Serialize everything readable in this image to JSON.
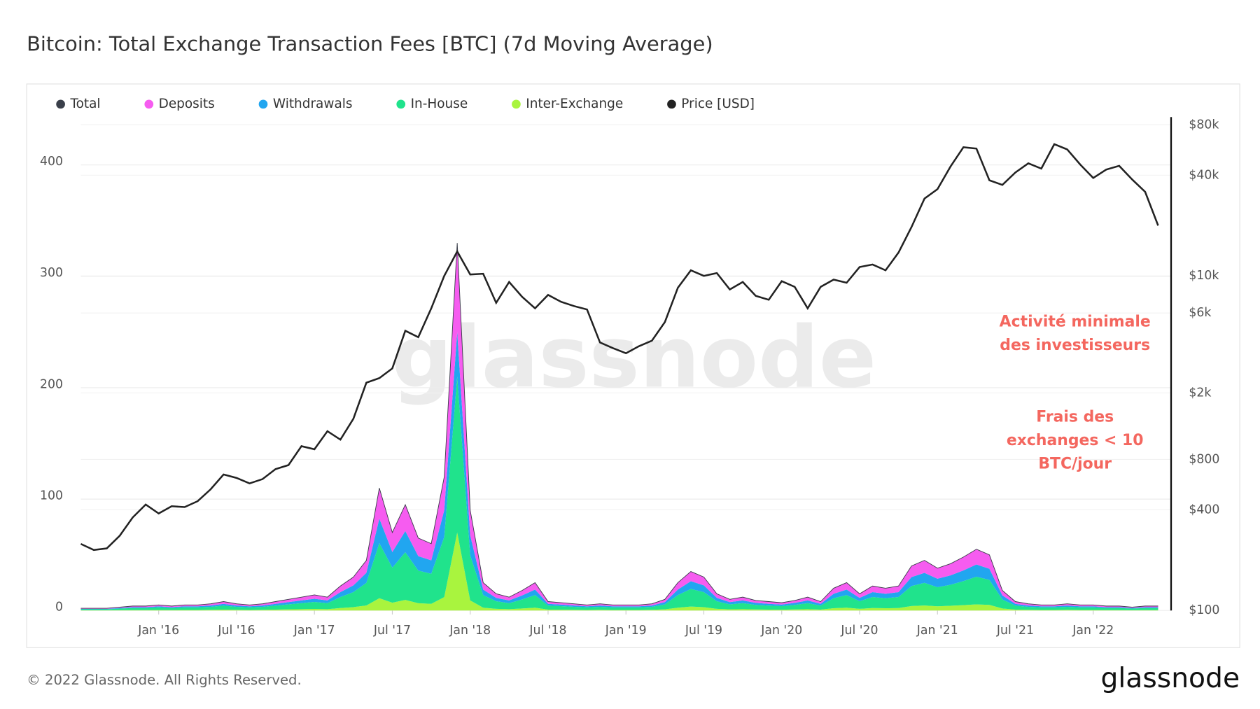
{
  "chart_data": {
    "type": "stacked-area",
    "title": "Bitcoin: Total Exchange Transaction Fees [BTC] (7d Moving Average)",
    "x": [
      "2015-07",
      "2015-08",
      "2015-09",
      "2015-10",
      "2015-11",
      "2015-12",
      "2016-01",
      "2016-02",
      "2016-03",
      "2016-04",
      "2016-05",
      "2016-06",
      "2016-07",
      "2016-08",
      "2016-09",
      "2016-10",
      "2016-11",
      "2016-12",
      "2017-01",
      "2017-02",
      "2017-03",
      "2017-04",
      "2017-05",
      "2017-06",
      "2017-07",
      "2017-08",
      "2017-09",
      "2017-10",
      "2017-11",
      "2017-12",
      "2018-01",
      "2018-02",
      "2018-03",
      "2018-04",
      "2018-05",
      "2018-06",
      "2018-07",
      "2018-08",
      "2018-09",
      "2018-10",
      "2018-11",
      "2018-12",
      "2019-01",
      "2019-02",
      "2019-03",
      "2019-04",
      "2019-05",
      "2019-06",
      "2019-07",
      "2019-08",
      "2019-09",
      "2019-10",
      "2019-11",
      "2019-12",
      "2020-01",
      "2020-02",
      "2020-03",
      "2020-04",
      "2020-05",
      "2020-06",
      "2020-07",
      "2020-08",
      "2020-09",
      "2020-10",
      "2020-11",
      "2020-12",
      "2021-01",
      "2021-02",
      "2021-03",
      "2021-04",
      "2021-05",
      "2021-06",
      "2021-07",
      "2021-08",
      "2021-09",
      "2021-10",
      "2021-11",
      "2021-12",
      "2022-01",
      "2022-02",
      "2022-03",
      "2022-04",
      "2022-05",
      "2022-06"
    ],
    "xlim": [
      "2015-07",
      "2022-07"
    ],
    "xticks": [
      {
        "value": "2016-01",
        "label": "Jan '16"
      },
      {
        "value": "2016-07",
        "label": "Jul '16"
      },
      {
        "value": "2017-01",
        "label": "Jan '17"
      },
      {
        "value": "2017-07",
        "label": "Jul '17"
      },
      {
        "value": "2018-01",
        "label": "Jan '18"
      },
      {
        "value": "2018-07",
        "label": "Jul '18"
      },
      {
        "value": "2019-01",
        "label": "Jan '19"
      },
      {
        "value": "2019-07",
        "label": "Jul '19"
      },
      {
        "value": "2020-01",
        "label": "Jan '20"
      },
      {
        "value": "2020-07",
        "label": "Jul '20"
      },
      {
        "value": "2021-01",
        "label": "Jan '21"
      },
      {
        "value": "2021-07",
        "label": "Jul '21"
      },
      {
        "value": "2022-01",
        "label": "Jan '22"
      }
    ],
    "ylim": [
      0,
      443
    ],
    "yticks": [
      0,
      100,
      200,
      300,
      400
    ],
    "y2lim": [
      100,
      89000
    ],
    "y2scale": "log",
    "y2ticks": [
      {
        "value": 100,
        "label": "$100"
      },
      {
        "value": 400,
        "label": "$400"
      },
      {
        "value": 800,
        "label": "$800"
      },
      {
        "value": 2000,
        "label": "$2k"
      },
      {
        "value": 6000,
        "label": "$6k"
      },
      {
        "value": 10000,
        "label": "$10k"
      },
      {
        "value": 40000,
        "label": "$40k"
      },
      {
        "value": 80000,
        "label": "$80k"
      }
    ],
    "grid": true,
    "series": [
      {
        "name": "Total",
        "color": "#3a3f4a",
        "kind": "line",
        "values": [
          2,
          2,
          2,
          3,
          4,
          4,
          5,
          4,
          5,
          5,
          6,
          8,
          6,
          5,
          6,
          8,
          10,
          12,
          14,
          12,
          22,
          30,
          45,
          110,
          70,
          95,
          65,
          60,
          120,
          330,
          90,
          25,
          15,
          12,
          18,
          25,
          8,
          7,
          6,
          5,
          6,
          5,
          5,
          5,
          6,
          10,
          25,
          35,
          30,
          15,
          10,
          12,
          9,
          8,
          7,
          9,
          12,
          8,
          20,
          25,
          15,
          22,
          20,
          22,
          40,
          45,
          38,
          42,
          48,
          55,
          50,
          18,
          8,
          6,
          5,
          5,
          6,
          5,
          5,
          4,
          4,
          3,
          4,
          4
        ]
      },
      {
        "name": "Deposits",
        "color": "#f65cf0",
        "kind": "stack",
        "values": [
          0.5,
          0.5,
          0.5,
          0.7,
          1,
          1,
          1.2,
          1,
          1.2,
          1.2,
          1.5,
          2,
          1.5,
          1.2,
          1.5,
          2,
          2.5,
          3,
          3.5,
          3,
          5.5,
          7.5,
          11.2,
          27.5,
          17.5,
          23.7,
          16.2,
          15,
          30,
          80,
          22.5,
          6.2,
          3.7,
          3,
          4.5,
          6.2,
          2,
          1.7,
          1.5,
          1.2,
          1.5,
          1.2,
          1.2,
          1.2,
          1.5,
          2.5,
          6.2,
          8.7,
          7.5,
          3.7,
          2.5,
          3,
          2.2,
          2,
          1.7,
          2.2,
          3,
          2,
          5,
          6.2,
          3.7,
          5.5,
          5,
          5.5,
          10,
          11.2,
          9.5,
          10.5,
          12,
          13.7,
          12.5,
          4.5,
          2,
          1.5,
          1.2,
          1.2,
          1.5,
          1.2,
          1.2,
          1,
          1,
          0.7,
          1,
          1
        ]
      },
      {
        "name": "Withdrawals",
        "color": "#21a6f0",
        "kind": "stack",
        "values": [
          0.4,
          0.4,
          0.4,
          0.6,
          0.8,
          0.8,
          1,
          0.8,
          1,
          1,
          1.2,
          1.6,
          1.2,
          1,
          1.2,
          1.6,
          2,
          2.4,
          2.8,
          2.4,
          4.4,
          6,
          9,
          22,
          14,
          19,
          13,
          12,
          24,
          40,
          18,
          5,
          3,
          2.4,
          3.6,
          5,
          1.6,
          1.4,
          1.2,
          1,
          1.2,
          1,
          1,
          1,
          1.2,
          2,
          5,
          7,
          6,
          3,
          2,
          2.4,
          1.8,
          1.6,
          1.4,
          1.8,
          2.4,
          1.6,
          4,
          5,
          3,
          4.4,
          4,
          4.4,
          8,
          9,
          7.6,
          8.4,
          9.6,
          11,
          10,
          3.6,
          1.6,
          1.2,
          1,
          1,
          1.2,
          1,
          1,
          0.8,
          0.8,
          0.6,
          0.8,
          0.8
        ]
      },
      {
        "name": "In-House",
        "color": "#20e38c",
        "kind": "stack",
        "values": [
          0.9,
          0.9,
          0.9,
          1.4,
          1.8,
          1.8,
          2.3,
          1.8,
          2.3,
          2.3,
          2.7,
          3.6,
          2.7,
          2.3,
          2.7,
          3.6,
          4.5,
          5.4,
          6.3,
          5.4,
          9.9,
          13.5,
          20.3,
          49.5,
          31.5,
          42.8,
          29.3,
          27,
          54,
          140,
          40.5,
          11.3,
          6.8,
          5.4,
          8.1,
          11.3,
          3.6,
          3.2,
          2.7,
          2.3,
          2.7,
          2.3,
          2.3,
          2.3,
          2.7,
          4.5,
          11.3,
          15.8,
          13.5,
          6.8,
          4.5,
          5.4,
          4.1,
          3.6,
          3.2,
          4.1,
          5.4,
          3.6,
          9,
          11.3,
          6.8,
          9.9,
          9,
          9.9,
          18,
          20.3,
          17.1,
          18.9,
          21.6,
          24.8,
          22.5,
          8.1,
          3.6,
          2.7,
          2.3,
          2.3,
          2.7,
          2.3,
          2.3,
          1.8,
          1.8,
          1.4,
          1.8,
          1.8
        ]
      },
      {
        "name": "Inter-Exchange",
        "color": "#a9f43e",
        "kind": "stack",
        "values": [
          0.2,
          0.2,
          0.2,
          0.3,
          0.4,
          0.4,
          0.5,
          0.4,
          0.5,
          0.5,
          0.6,
          0.8,
          0.6,
          0.5,
          0.6,
          0.8,
          1,
          1.2,
          1.4,
          1.2,
          2.2,
          3,
          4.5,
          11,
          7,
          9.5,
          6.5,
          6,
          12,
          70,
          9,
          2.5,
          1.5,
          1.2,
          1.8,
          2.5,
          0.8,
          0.7,
          0.6,
          0.5,
          0.6,
          0.5,
          0.5,
          0.5,
          0.6,
          1,
          2.5,
          3.5,
          3,
          1.5,
          1,
          1.2,
          0.9,
          0.8,
          0.7,
          0.9,
          1.2,
          0.8,
          2,
          2.5,
          1.5,
          2.2,
          2,
          2.2,
          4,
          4.5,
          3.8,
          4.2,
          4.8,
          5.5,
          5,
          1.8,
          0.8,
          0.6,
          0.5,
          0.5,
          0.6,
          0.5,
          0.5,
          0.4,
          0.4,
          0.3,
          0.4,
          0.4
        ]
      },
      {
        "name": "Price [USD]",
        "color": "#222222",
        "kind": "line",
        "axis": "y2",
        "values": [
          250,
          230,
          235,
          280,
          360,
          430,
          380,
          420,
          415,
          450,
          530,
          650,
          620,
          575,
          610,
          700,
          740,
          960,
          920,
          1180,
          1050,
          1400,
          2300,
          2450,
          2800,
          4700,
          4300,
          6400,
          10000,
          14000,
          10200,
          10300,
          6900,
          9200,
          7500,
          6400,
          7700,
          7000,
          6600,
          6300,
          4000,
          3700,
          3450,
          3800,
          4100,
          5300,
          8500,
          10800,
          10000,
          10400,
          8300,
          9200,
          7600,
          7200,
          9300,
          8600,
          6400,
          8600,
          9500,
          9100,
          11300,
          11700,
          10800,
          13800,
          19600,
          29000,
          33000,
          45000,
          58800,
          57700,
          37300,
          35000,
          41500,
          47100,
          43800,
          61300,
          57000,
          46300,
          38500,
          43200,
          45500,
          37700,
          31800,
          20000
        ]
      }
    ],
    "annotations": [
      {
        "lines": [
          "Activité minimale",
          "des investisseurs"
        ]
      },
      {
        "lines": [
          "Frais des",
          "exchanges < 10",
          "BTC/jour"
        ]
      }
    ],
    "watermark": "glassnode",
    "footer": "© 2022 Glassnode. All Rights Reserved.",
    "logo": "glassnode"
  }
}
